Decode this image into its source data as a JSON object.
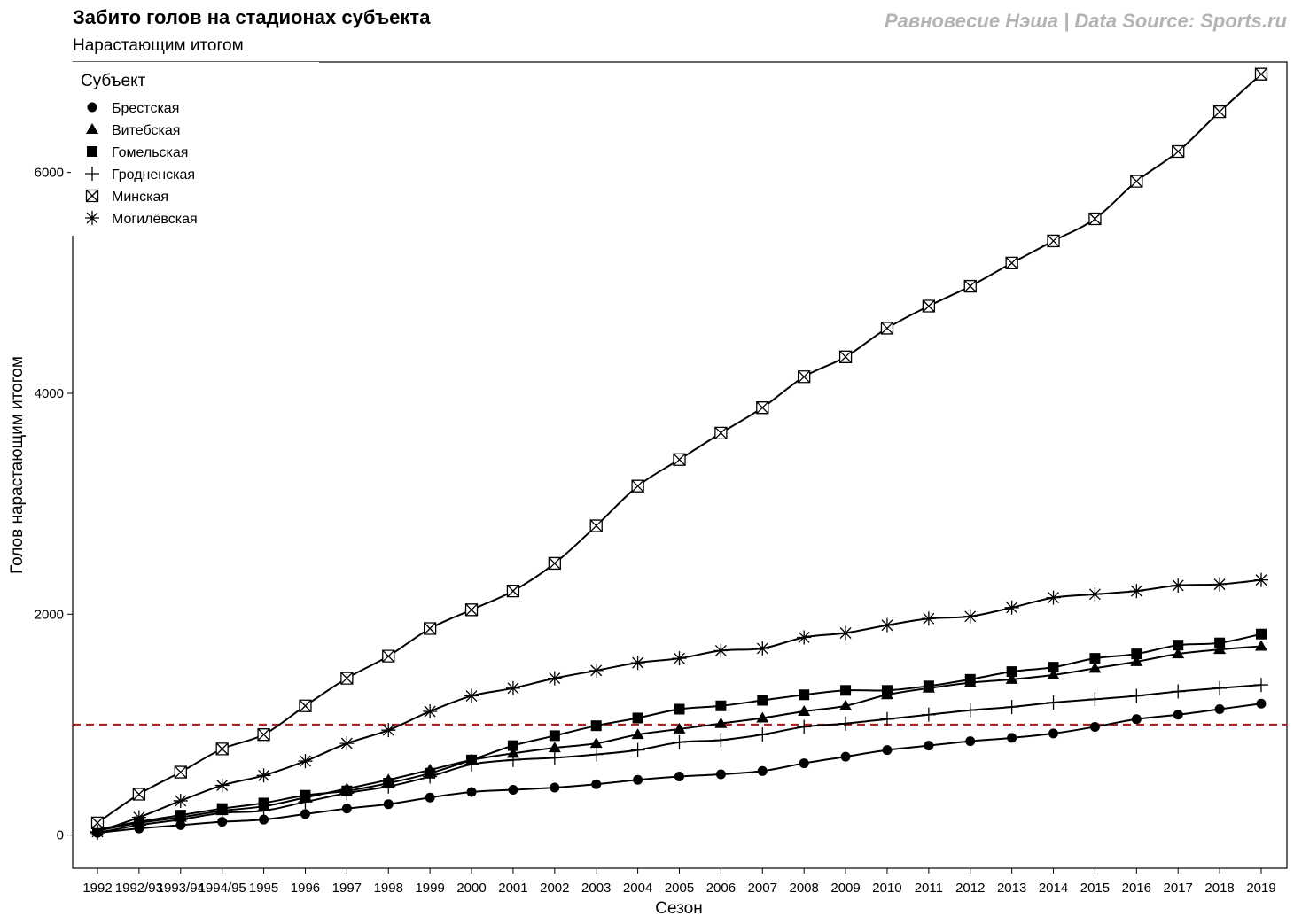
{
  "chart_data": {
    "type": "line",
    "title": "Забито голов на стадионах субъекта",
    "subtitle": "Нарастающим итогом",
    "caption": "Равновесие Нэша | Data Source: Sports.ru",
    "xlabel": "Сезон",
    "ylabel": "Голов нарастающим итогом",
    "ylim": [
      -300,
      7000
    ],
    "yticks": [
      0,
      2000,
      4000,
      6000
    ],
    "reference_line": {
      "y": 1000,
      "color": "#b22222",
      "style": "dashed"
    },
    "legend": {
      "title": "Субъект",
      "position": "top-left"
    },
    "categories": [
      "1992",
      "1992/93",
      "1993/94",
      "1994/95",
      "1995",
      "1996",
      "1997",
      "1998",
      "1999",
      "2000",
      "2001",
      "2002",
      "2003",
      "2004",
      "2005",
      "2006",
      "2007",
      "2008",
      "2009",
      "2010",
      "2011",
      "2012",
      "2013",
      "2014",
      "2015",
      "2016",
      "2017",
      "2018",
      "2019"
    ],
    "series": [
      {
        "name": "Брестская",
        "marker": "circle",
        "values": [
          20,
          60,
          90,
          120,
          140,
          190,
          240,
          280,
          340,
          390,
          410,
          430,
          460,
          500,
          530,
          550,
          580,
          650,
          710,
          770,
          810,
          850,
          880,
          920,
          980,
          1050,
          1090,
          1140,
          1190
        ]
      },
      {
        "name": "Витебская",
        "marker": "triangle",
        "values": [
          40,
          110,
          160,
          220,
          260,
          340,
          420,
          500,
          590,
          680,
          740,
          790,
          830,
          910,
          960,
          1010,
          1060,
          1120,
          1170,
          1270,
          1330,
          1380,
          1410,
          1450,
          1510,
          1570,
          1640,
          1680,
          1710
        ]
      },
      {
        "name": "Гомельская",
        "marker": "square",
        "values": [
          50,
          120,
          180,
          240,
          290,
          360,
          400,
          470,
          560,
          680,
          810,
          900,
          990,
          1060,
          1140,
          1170,
          1220,
          1270,
          1310,
          1310,
          1350,
          1410,
          1480,
          1520,
          1600,
          1640,
          1720,
          1740,
          1820
        ]
      },
      {
        "name": "Гродненская",
        "marker": "plus",
        "values": [
          20,
          90,
          140,
          200,
          220,
          300,
          380,
          440,
          530,
          640,
          680,
          700,
          730,
          770,
          840,
          860,
          910,
          980,
          1010,
          1050,
          1090,
          1130,
          1160,
          1200,
          1230,
          1260,
          1300,
          1330,
          1360
        ]
      },
      {
        "name": "Минская",
        "marker": "square-x",
        "values": [
          110,
          370,
          570,
          780,
          910,
          1170,
          1420,
          1620,
          1870,
          2040,
          2210,
          2460,
          2800,
          3160,
          3400,
          3640,
          3870,
          4150,
          4330,
          4590,
          4790,
          4970,
          5180,
          5380,
          5580,
          5920,
          6190,
          6550,
          6890
        ]
      },
      {
        "name": "Могилёвская",
        "marker": "asterisk",
        "values": [
          30,
          160,
          310,
          450,
          540,
          670,
          830,
          950,
          1120,
          1260,
          1330,
          1420,
          1490,
          1560,
          1600,
          1670,
          1690,
          1790,
          1830,
          1900,
          1960,
          1980,
          2060,
          2150,
          2180,
          2210,
          2260,
          2270,
          2310
        ]
      }
    ]
  }
}
